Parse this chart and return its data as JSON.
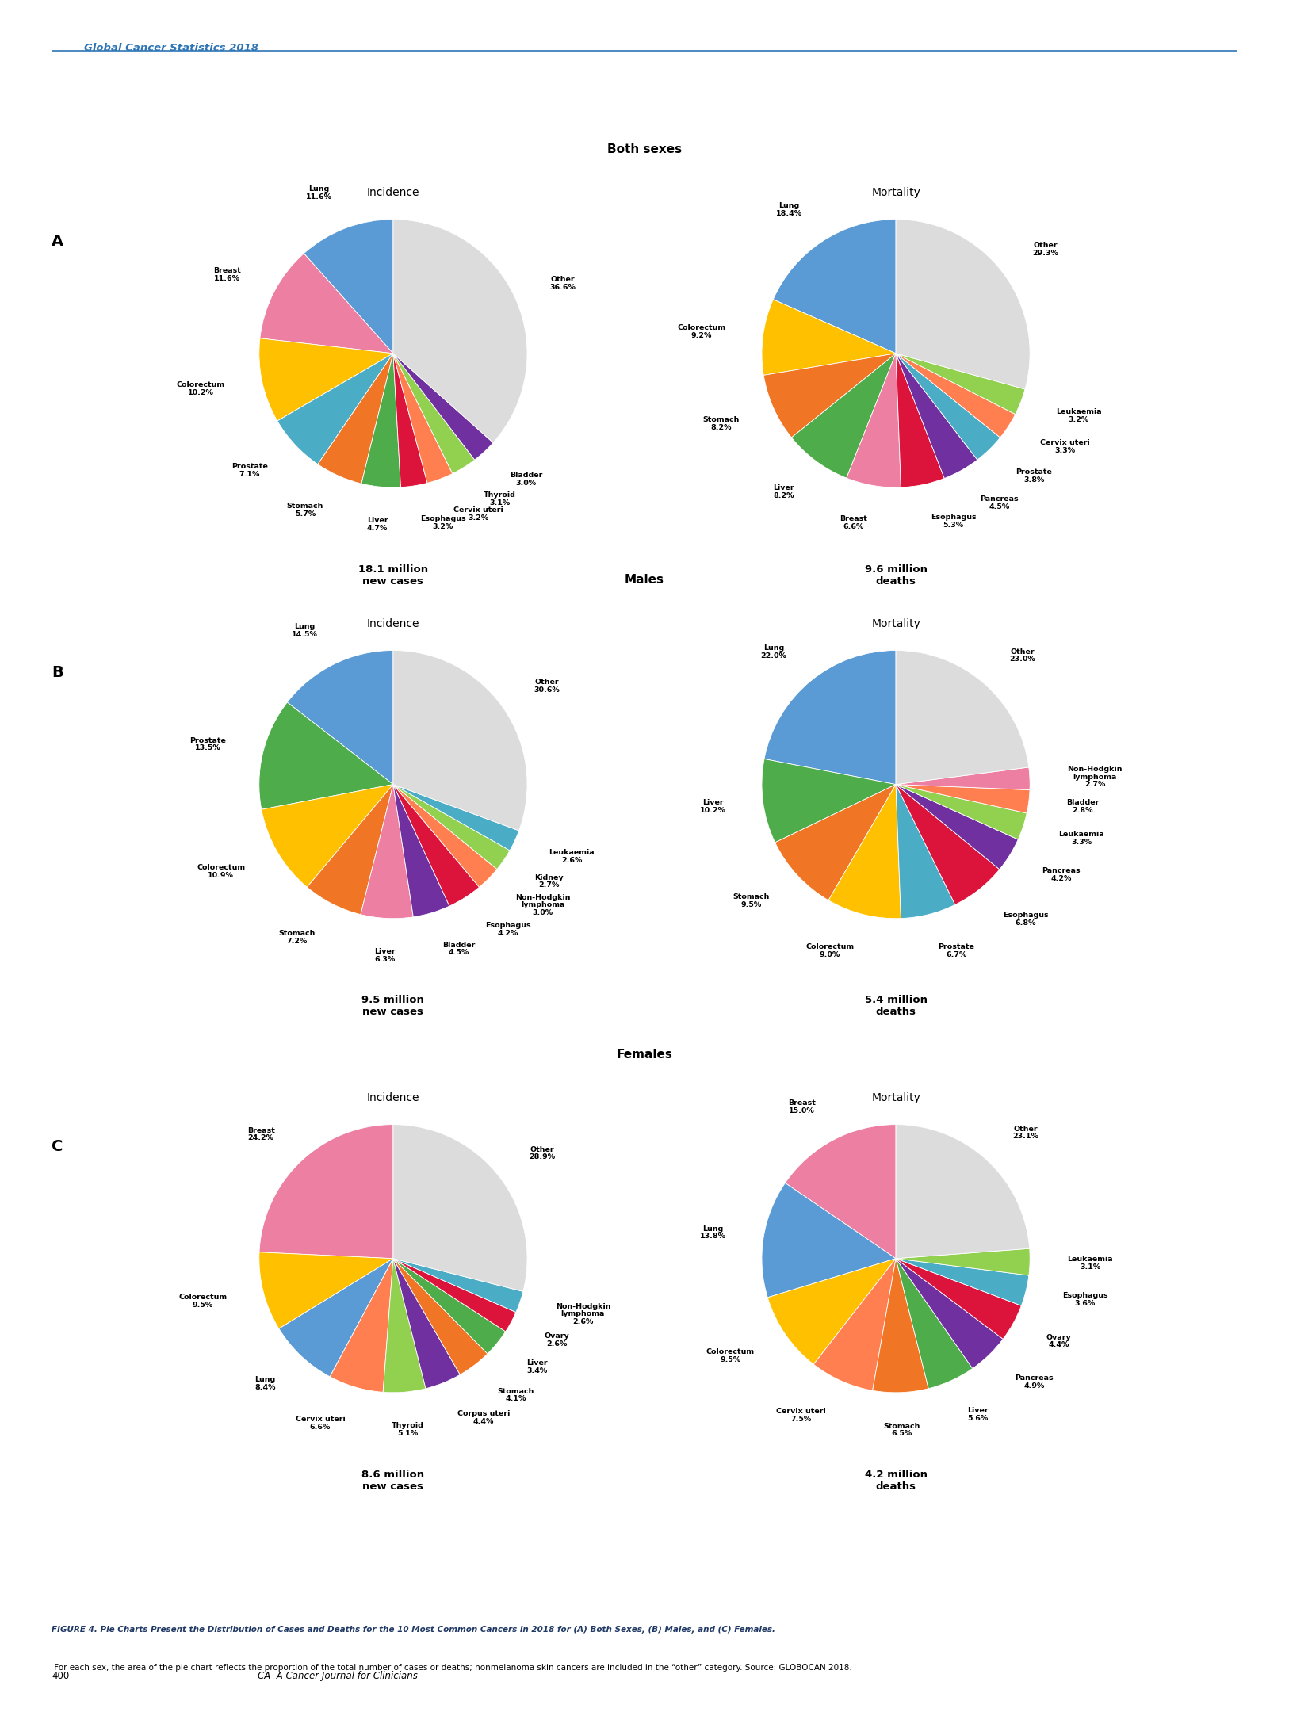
{
  "title_header": "Global Cancer Statistics 2018",
  "figure_caption_bold": "FIGURE 4. Pie Charts Present the Distribution of Cases and Deaths for the 10 Most Common Cancers in 2018 for (A) Both Sexes, (B) Males, and (C) Females.",
  "figure_caption_normal": " For each sex, the area of the pie chart reflects the proportion of the total number of cases or deaths; nonmelanoma skin cancers are included in the “other” category. Source: GLOBOCAN 2018.",
  "page_number": "400",
  "journal": "CA  A Cancer Journal for Clinicians",
  "A_inc_labels": [
    "Lung",
    "Breast",
    "Colorectum",
    "Prostate",
    "Stomach",
    "Liver",
    "Esophagus",
    "Cervix uteri",
    "Thyroid",
    "Bladder",
    "Other"
  ],
  "A_inc_values": [
    11.6,
    11.6,
    10.2,
    7.1,
    5.7,
    4.7,
    3.2,
    3.2,
    3.1,
    3.0,
    36.6
  ],
  "A_inc_colors": [
    "#5B9BD5",
    "#ED7FA2",
    "#FFC000",
    "#4BACC6",
    "#F07525",
    "#4EAC4B",
    "#DC143C",
    "#FF7F50",
    "#92D050",
    "#7030A0",
    "#DCDCDC"
  ],
  "A_inc_startangle": 90,
  "A_inc_total": "18.1 million\nnew cases",
  "A_mort_labels": [
    "Lung",
    "Colorectum",
    "Stomach",
    "Liver",
    "Breast",
    "Esophagus",
    "Pancreas",
    "Prostate",
    "Cervix uteri",
    "Leukaemia",
    "Other"
  ],
  "A_mort_values": [
    18.4,
    9.2,
    8.2,
    8.2,
    6.6,
    5.3,
    4.5,
    3.8,
    3.3,
    3.2,
    29.3
  ],
  "A_mort_colors": [
    "#5B9BD5",
    "#FFC000",
    "#F07525",
    "#4EAC4B",
    "#ED7FA2",
    "#DC143C",
    "#7030A0",
    "#4BACC6",
    "#FF7F50",
    "#92D050",
    "#DCDCDC"
  ],
  "A_mort_startangle": 90,
  "A_mort_total": "9.6 million\ndeaths",
  "B_inc_labels": [
    "Lung",
    "Prostate",
    "Colorectum",
    "Stomach",
    "Liver",
    "Bladder",
    "Esophagus",
    "Non-Hodgkin\nlymphoma",
    "Kidney",
    "Leukaemia",
    "Other"
  ],
  "B_inc_values": [
    14.5,
    13.5,
    10.9,
    7.2,
    6.3,
    4.5,
    4.2,
    3.0,
    2.7,
    2.6,
    30.6
  ],
  "B_inc_colors": [
    "#5B9BD5",
    "#4EAC4B",
    "#FFC000",
    "#F07525",
    "#ED7FA2",
    "#7030A0",
    "#DC143C",
    "#FF7F50",
    "#92D050",
    "#4BACC6",
    "#DCDCDC"
  ],
  "B_inc_startangle": 90,
  "B_inc_total": "9.5 million\nnew cases",
  "B_mort_labels": [
    "Lung",
    "Liver",
    "Stomach",
    "Colorectum",
    "Prostate",
    "Esophagus",
    "Pancreas",
    "Leukaemia",
    "Bladder",
    "Non-Hodgkin\nlymphoma",
    "Other"
  ],
  "B_mort_values": [
    22.0,
    10.2,
    9.5,
    9.0,
    6.7,
    6.8,
    4.2,
    3.3,
    2.8,
    2.7,
    23.0
  ],
  "B_mort_colors": [
    "#5B9BD5",
    "#4EAC4B",
    "#F07525",
    "#FFC000",
    "#4BACC6",
    "#DC143C",
    "#7030A0",
    "#92D050",
    "#FF7F50",
    "#ED7FA2",
    "#DCDCDC"
  ],
  "B_mort_startangle": 90,
  "B_mort_total": "5.4 million\ndeaths",
  "C_inc_labels": [
    "Breast",
    "Colorectum",
    "Lung",
    "Cervix uteri",
    "Thyroid",
    "Corpus uteri",
    "Stomach",
    "Liver",
    "Ovary",
    "Non-Hodgkin\nlymphoma",
    "Other"
  ],
  "C_inc_values": [
    24.2,
    9.5,
    8.4,
    6.6,
    5.1,
    4.4,
    4.1,
    3.4,
    2.6,
    2.6,
    28.9
  ],
  "C_inc_colors": [
    "#ED7FA2",
    "#FFC000",
    "#5B9BD5",
    "#FF7F50",
    "#92D050",
    "#7030A0",
    "#F07525",
    "#4EAC4B",
    "#DC143C",
    "#4BACC6",
    "#DCDCDC"
  ],
  "C_inc_startangle": 90,
  "C_inc_total": "8.6 million\nnew cases",
  "C_mort_labels": [
    "Breast",
    "Lung",
    "Colorectum",
    "Cervix uteri",
    "Stomach",
    "Liver",
    "Pancreas",
    "Ovary",
    "Esophagus",
    "Leukaemia",
    "Other"
  ],
  "C_mort_values": [
    15.0,
    13.8,
    9.5,
    7.5,
    6.5,
    5.6,
    4.9,
    4.4,
    3.6,
    3.1,
    23.1
  ],
  "C_mort_colors": [
    "#ED7FA2",
    "#5B9BD5",
    "#FFC000",
    "#FF7F50",
    "#F07525",
    "#4EAC4B",
    "#7030A0",
    "#DC143C",
    "#4BACC6",
    "#92D050",
    "#DCDCDC"
  ],
  "C_mort_startangle": 90,
  "C_mort_total": "4.2 million\ndeaths"
}
